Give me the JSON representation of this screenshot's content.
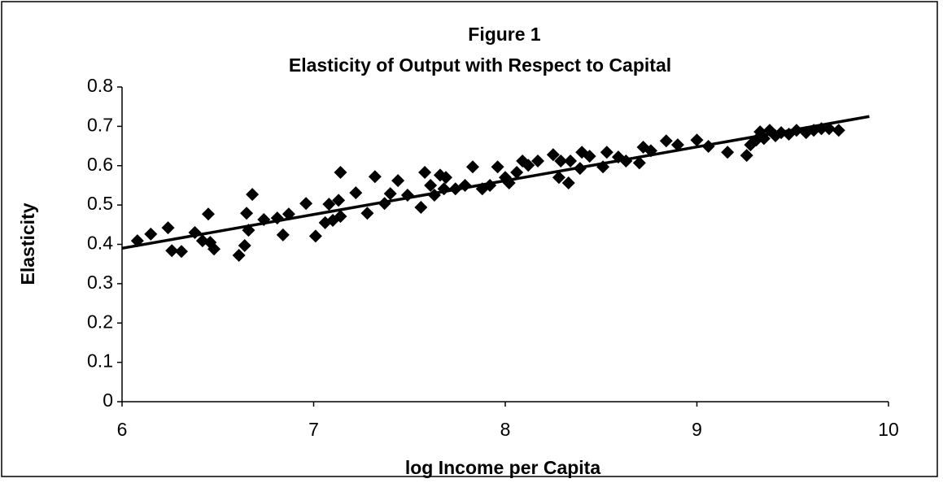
{
  "chart_data": {
    "type": "scatter",
    "title": "Figure 1",
    "subtitle": "Elasticity of Output with Respect to Capital",
    "x_label": "log Income per Capita",
    "y_label": "Elasticity",
    "color": "#000000",
    "marker": "diamond",
    "grid": false,
    "xlim": [
      6,
      10
    ],
    "xticks": [
      6,
      7,
      8,
      9,
      10
    ],
    "ylim": [
      0,
      0.8
    ],
    "yticks": [
      0,
      0.1,
      0.2,
      0.3,
      0.4,
      0.5,
      0.6,
      0.7,
      0.8
    ],
    "x": [
      6.08,
      6.15,
      6.24,
      6.26,
      6.31,
      6.38,
      6.42,
      6.45,
      6.46,
      6.48,
      6.61,
      6.64,
      6.65,
      6.66,
      6.68,
      6.74,
      6.81,
      6.84,
      6.87,
      6.96,
      7.01,
      7.06,
      7.08,
      7.1,
      7.13,
      7.14,
      7.14,
      7.22,
      7.28,
      7.32,
      7.37,
      7.4,
      7.44,
      7.49,
      7.56,
      7.58,
      7.61,
      7.63,
      7.66,
      7.68,
      7.69,
      7.74,
      7.79,
      7.83,
      7.88,
      7.92,
      7.96,
      8.0,
      8.02,
      8.06,
      8.09,
      8.12,
      8.17,
      8.25,
      8.28,
      8.29,
      8.33,
      8.34,
      8.39,
      8.4,
      8.44,
      8.51,
      8.53,
      8.59,
      8.63,
      8.7,
      8.72,
      8.76,
      8.84,
      8.9,
      9.0,
      9.06,
      9.16,
      9.26,
      9.28,
      9.31,
      9.33,
      9.35,
      9.38,
      9.41,
      9.44,
      9.48,
      9.52,
      9.57,
      9.61,
      9.65,
      9.69,
      9.74
    ],
    "values": [
      0.409,
      0.426,
      0.442,
      0.384,
      0.382,
      0.43,
      0.409,
      0.477,
      0.405,
      0.388,
      0.372,
      0.397,
      0.479,
      0.436,
      0.527,
      0.463,
      0.467,
      0.424,
      0.477,
      0.504,
      0.421,
      0.455,
      0.502,
      0.461,
      0.512,
      0.583,
      0.471,
      0.531,
      0.479,
      0.572,
      0.504,
      0.529,
      0.562,
      0.525,
      0.494,
      0.583,
      0.55,
      0.525,
      0.576,
      0.541,
      0.57,
      0.541,
      0.55,
      0.597,
      0.541,
      0.55,
      0.597,
      0.57,
      0.556,
      0.583,
      0.612,
      0.601,
      0.612,
      0.628,
      0.57,
      0.612,
      0.556,
      0.612,
      0.593,
      0.634,
      0.624,
      0.597,
      0.634,
      0.622,
      0.612,
      0.607,
      0.647,
      0.638,
      0.663,
      0.653,
      0.665,
      0.649,
      0.634,
      0.626,
      0.653,
      0.665,
      0.686,
      0.669,
      0.69,
      0.676,
      0.684,
      0.68,
      0.69,
      0.684,
      0.69,
      0.694,
      0.694,
      0.69
    ],
    "trendline": {
      "x": [
        6,
        9.9
      ],
      "values": [
        0.39,
        0.725
      ],
      "color": "#000000"
    }
  }
}
